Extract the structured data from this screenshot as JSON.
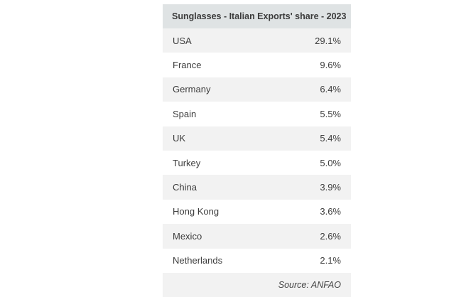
{
  "chart_data": {
    "type": "table",
    "title": "Sunglasses - Italian Exports' share - 2023",
    "rows": [
      {
        "country": "USA",
        "share": "29.1%"
      },
      {
        "country": "France",
        "share": "9.6%"
      },
      {
        "country": "Germany",
        "share": "6.4%"
      },
      {
        "country": "Spain",
        "share": "5.5%"
      },
      {
        "country": "UK",
        "share": "5.4%"
      },
      {
        "country": "Turkey",
        "share": "5.0%"
      },
      {
        "country": "China",
        "share": "3.9%"
      },
      {
        "country": "Hong Kong",
        "share": "3.6%"
      },
      {
        "country": "Mexico",
        "share": "2.6%"
      },
      {
        "country": "Netherlands",
        "share": "2.1%"
      }
    ],
    "source": "Source: ANFAO"
  }
}
